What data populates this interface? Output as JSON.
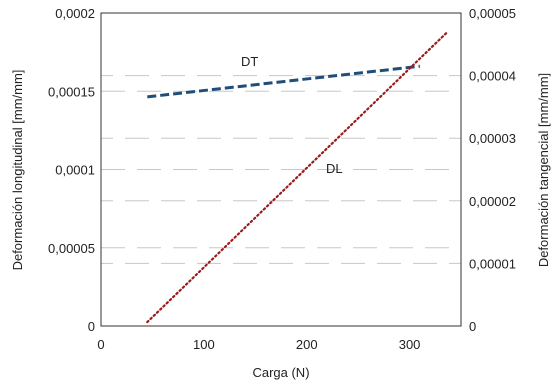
{
  "chart_data": {
    "type": "line",
    "xlabel": "Carga (N)",
    "ylabel_left": "Deformación longitudinal [mm/mm]",
    "ylabel_right": "Deformación tangencial [mm/mm]",
    "xlim": [
      0,
      350
    ],
    "ylim_left": [
      0,
      0.0002
    ],
    "ylim_right": [
      0,
      5e-05
    ],
    "x_ticks": [
      "0",
      "100",
      "200",
      "300"
    ],
    "x_tick_values": [
      0,
      100,
      200,
      300
    ],
    "y_left_ticks": [
      "0",
      "0,00005",
      "0,0001",
      "0,00015",
      "0,0002"
    ],
    "y_left_tick_values": [
      0,
      5e-05,
      0.0001,
      0.00015,
      0.0002
    ],
    "y_right_ticks": [
      "0",
      "0,00001",
      "0,00002",
      "0,00003",
      "0,00004",
      "0,00005"
    ],
    "y_right_tick_values": [
      0,
      1e-05,
      2e-05,
      3e-05,
      4e-05,
      5e-05
    ],
    "grid": "horizontal dashed",
    "series": [
      {
        "name": "DT",
        "axis": "right",
        "style": "dashed",
        "color": "#1f4e79",
        "x": [
          45,
          310
        ],
        "y": [
          3.66e-05,
          4.15e-05
        ]
      },
      {
        "name": "DL",
        "axis": "left",
        "style": "dotted",
        "color": "#9b1b1b",
        "x": [
          45,
          337
        ],
        "y": [
          2.5e-06,
          0.000188
        ]
      }
    ]
  }
}
